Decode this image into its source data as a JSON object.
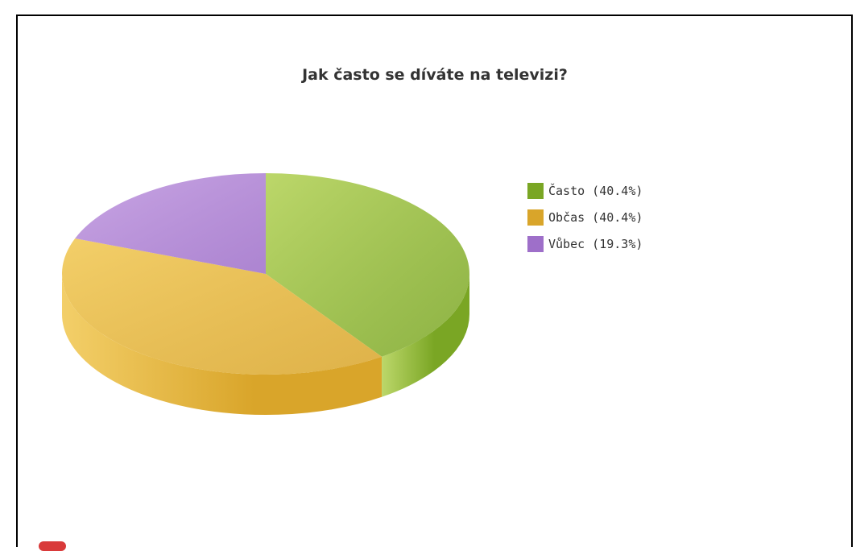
{
  "chart_data": {
    "type": "pie",
    "title": "Jak často se díváte na televizi?",
    "slices": [
      {
        "label": "Často",
        "value": 40.4,
        "legend": "Často (40.4%)",
        "color": "#7aa624",
        "light": "#bcd76a"
      },
      {
        "label": "Občas",
        "value": 40.4,
        "legend": "Občas (40.4%)",
        "color": "#d9a52a",
        "light": "#f3cf69"
      },
      {
        "label": "Vůbec",
        "value": 19.3,
        "legend": "Vůbec (19.3%)",
        "color": "#9e6fc9",
        "light": "#c9a6e4"
      }
    ],
    "legend_position": "right",
    "style": "3d"
  }
}
